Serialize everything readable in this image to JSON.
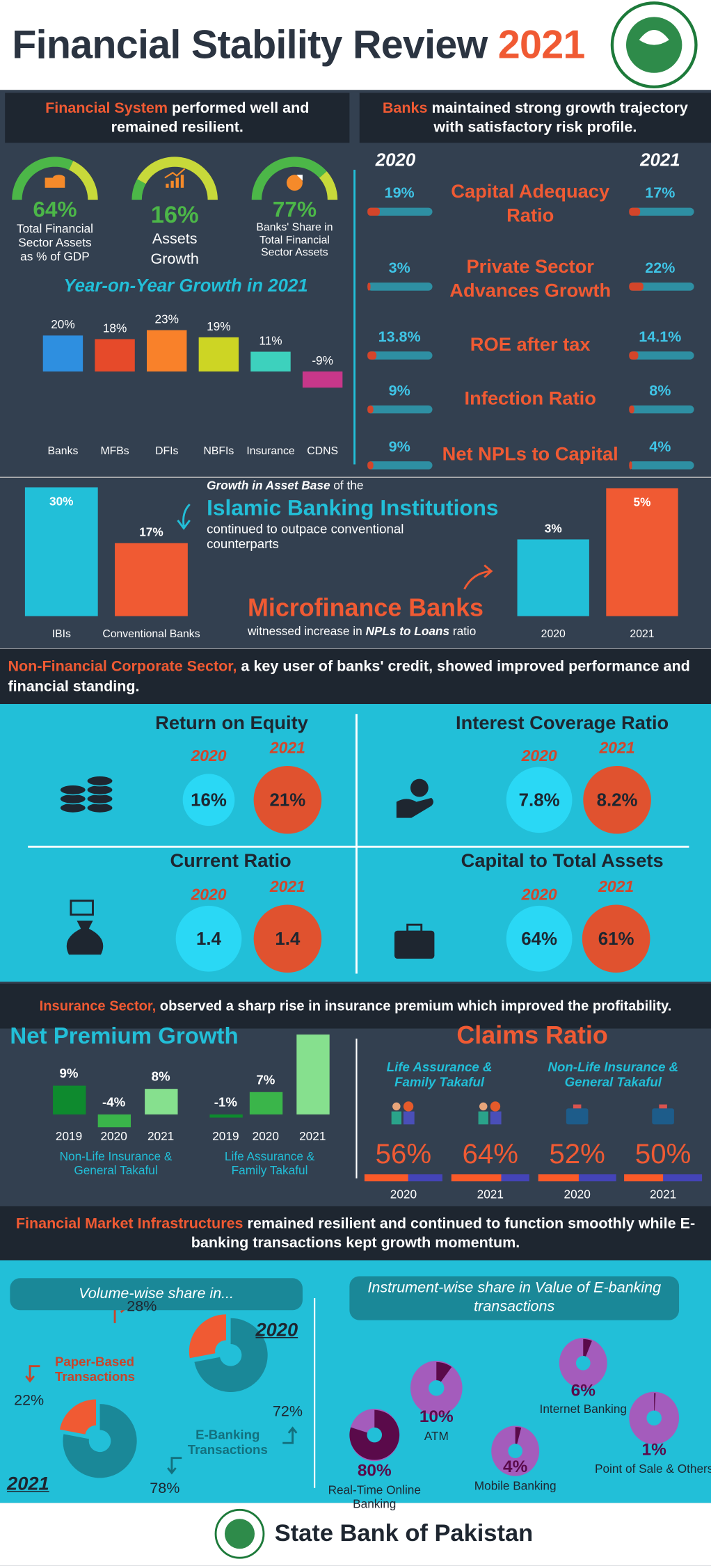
{
  "title": {
    "main": "Financial Stability Review",
    "year": "2021"
  },
  "logo": {
    "text": "STATE BANK OF PAKISTAN"
  },
  "colors": {
    "orange": "#f05a33",
    "cyan": "#22bfd8",
    "green": "#4cb748",
    "dark": "#1e2630",
    "panel": "#334050"
  },
  "financial_system": {
    "header_highlight": "Financial System",
    "header_rest": " performed well and remained resilient.",
    "gauges": [
      {
        "value": "64%",
        "label": "Total Financial\nSector Assets\nas % of GDP",
        "icon": "coins-icon",
        "fill": 0.64
      },
      {
        "value": "16%",
        "label": "Assets\nGrowth",
        "icon": "growth-chart-icon",
        "fill": 0.16
      },
      {
        "value": "77%",
        "label": "Banks' Share in\nTotal Financial\nSector Assets",
        "icon": "pie-chart-icon",
        "fill": 0.77
      }
    ],
    "yoy_title": "Year-on-Year Growth in 2021"
  },
  "banks": {
    "header_highlight": "Banks",
    "header_rest": " maintained strong growth trajectory with satisfactory risk profile.",
    "year_left": "2020",
    "year_right": "2021",
    "metrics": [
      {
        "label": "Capital Adequacy\nRatio",
        "v2020": "19%",
        "v2021": "17%",
        "f2020": 19,
        "f2021": 17
      },
      {
        "label": "Private Sector\nAdvances Growth",
        "v2020": "3%",
        "v2021": "22%",
        "f2020": 3,
        "f2021": 22
      },
      {
        "label": "ROE after tax",
        "v2020": "13.8%",
        "v2021": "14.1%",
        "f2020": 13.8,
        "f2021": 14.1
      },
      {
        "label": "Infection Ratio",
        "v2020": "9%",
        "v2021": "8%",
        "f2020": 9,
        "f2021": 8
      },
      {
        "label": "Net NPLs to Capital",
        "v2020": "9%",
        "v2021": "4%",
        "f2020": 9,
        "f2021": 4
      }
    ]
  },
  "islamic": {
    "lead": "Growth in Asset Base",
    "lead_rest": " of the",
    "title": "Islamic Banking Institutions",
    "desc": "continued to outpace conventional\ncounterparts"
  },
  "mfb": {
    "title": "Microfinance Banks",
    "desc_pre": "witnessed increase in ",
    "desc_em": "NPLs to Loans",
    "desc_post": " ratio"
  },
  "nfc": {
    "header_highlight": "Non-Financial Corporate Sector,",
    "header_rest": " a key user of banks' credit, showed improved performance and financial standing.",
    "quadrants": [
      {
        "title": "Return on Equity",
        "y1": "2020",
        "y2": "2021",
        "v1": "16%",
        "v2": "21%",
        "icon": "coin-stack-icon"
      },
      {
        "title": "Interest Coverage Ratio",
        "y1": "2020",
        "y2": "2021",
        "v1": "7.8%",
        "v2": "8.2%",
        "icon": "hand-coin-icon"
      },
      {
        "title": "Current Ratio",
        "y1": "2020",
        "y2": "2021",
        "v1": "1.4",
        "v2": "1.4",
        "icon": "money-bag-icon"
      },
      {
        "title": "Capital to Total Assets",
        "y1": "2020",
        "y2": "2021",
        "v1": "64%",
        "v2": "61%",
        "icon": "briefcase-icon"
      }
    ]
  },
  "insurance": {
    "header_highlight": "Insurance Sector,",
    "header_rest": " observed a sharp rise in insurance premium which improved the profitability.",
    "npg_title": "Net Premium Growth",
    "npg_groups": [
      "Non-Life Insurance &\nGeneral Takaful",
      "Life Assurance &\nFamily Takaful"
    ],
    "claims_title": "Claims Ratio",
    "claims_groups": [
      "Life Assurance &\nFamily Takaful",
      "Non-Life Insurance &\nGeneral Takaful"
    ],
    "claims": [
      {
        "value": "56%",
        "year": "2020",
        "fill": 56,
        "icon": "family-icon"
      },
      {
        "value": "64%",
        "year": "2021",
        "fill": 64,
        "icon": "family-icon"
      },
      {
        "value": "52%",
        "year": "2020",
        "fill": 52,
        "icon": "briefcase-icon"
      },
      {
        "value": "50%",
        "year": "2021",
        "fill": 50,
        "icon": "briefcase-icon"
      }
    ]
  },
  "fmi": {
    "header_highlight": "Financial Market Infrastructures",
    "header_rest": " remained resilient and continued to function smoothly while E-banking transactions kept growth momentum.",
    "volume_title": "Volume-wise share in...",
    "instrument_title": "Instrument-wise share in Value of E-banking\ntransactions",
    "paper_label": "Paper-Based\nTransactions",
    "ebank_label": "E-Banking\nTransactions",
    "y2020": "2020",
    "y2021": "2021",
    "paper2020": "28%",
    "paper2021": "22%",
    "ebank2020": "72%",
    "ebank2021": "78%"
  },
  "footer": {
    "name": "State Bank of Pakistan"
  },
  "chart_data": [
    {
      "type": "bar",
      "title": "Year-on-Year Growth in 2021",
      "categories": [
        "Banks",
        "MFBs",
        "DFIs",
        "NBFIs",
        "Insurance",
        "CDNS"
      ],
      "values": [
        20,
        18,
        23,
        19,
        11,
        -9
      ],
      "labels": [
        "20%",
        "18%",
        "23%",
        "19%",
        "11%",
        "-9%"
      ],
      "colors": [
        "#2e8fe0",
        "#e64a2a",
        "#f9812a",
        "#cdd524",
        "#3dd1bd",
        "#c8378a"
      ]
    },
    {
      "type": "bar",
      "categories": [
        "IBIs",
        "Conventional Banks"
      ],
      "values": [
        30,
        17
      ],
      "labels": [
        "30%",
        "17%"
      ],
      "colors": [
        "#22bfd8",
        "#f05a33"
      ]
    },
    {
      "type": "bar",
      "categories": [
        "2020",
        "2021"
      ],
      "values": [
        3,
        5
      ],
      "labels": [
        "3%",
        "5%"
      ],
      "colors": [
        "#22bfd8",
        "#f05a33"
      ]
    },
    {
      "type": "bar",
      "title": "Net Premium Growth",
      "categories": [
        "2019",
        "2020",
        "2021"
      ],
      "series": [
        {
          "name": "Non-Life Insurance & General Takaful",
          "values": [
            9,
            -4,
            8
          ],
          "labels": [
            "9%",
            "-4%",
            "8%"
          ]
        },
        {
          "name": "Life Assurance & Family Takaful",
          "values": [
            -1,
            7,
            25
          ],
          "labels": [
            "-1%",
            "7%",
            "25%"
          ]
        }
      ],
      "colors": [
        "#0e8a2e",
        "#3ab54a",
        "#86e08e"
      ]
    },
    {
      "type": "pie",
      "title": "Volume-wise share in... 2020",
      "categories": [
        "Paper-Based Transactions",
        "E-Banking Transactions"
      ],
      "values": [
        28,
        72
      ]
    },
    {
      "type": "pie",
      "title": "Volume-wise share in... 2021",
      "categories": [
        "Paper-Based Transactions",
        "E-Banking Transactions"
      ],
      "values": [
        22,
        78
      ]
    },
    {
      "type": "pie",
      "title": "Instrument-wise share in Value of E-banking transactions",
      "categories": [
        "Real-Time Online Banking",
        "ATM",
        "Mobile Banking",
        "Internet Banking",
        "Point of Sale & Others"
      ],
      "values": [
        80,
        10,
        4,
        6,
        1
      ],
      "labels": [
        "80%",
        "10%",
        "4%",
        "6%",
        "1%"
      ]
    }
  ]
}
